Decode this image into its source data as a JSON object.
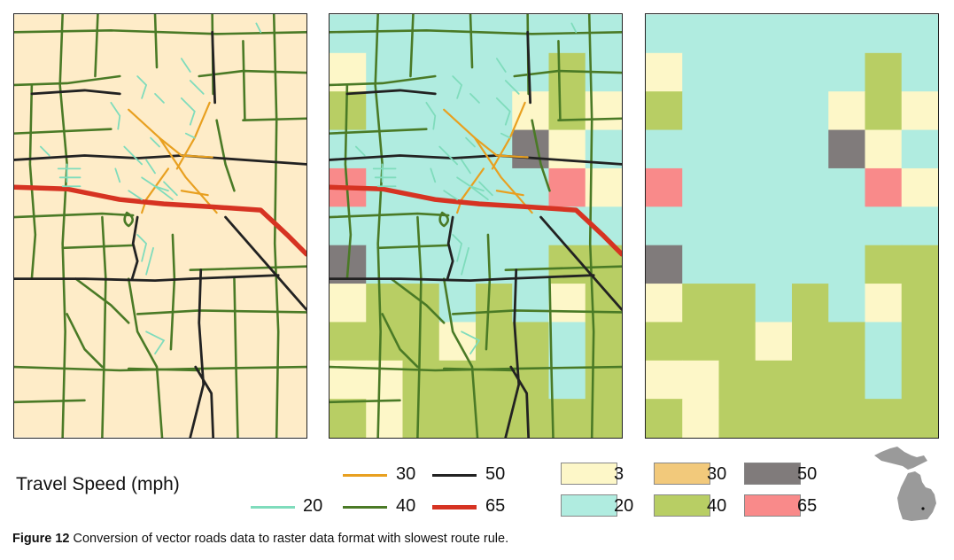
{
  "legend": {
    "title": "Travel Speed (mph)",
    "vector": [
      {
        "label": "30",
        "color": "#e8a020"
      },
      {
        "label": "50",
        "color": "#222222"
      },
      {
        "label": "20",
        "color": "#7fdcbc"
      },
      {
        "label": "40",
        "color": "#4a7a26"
      },
      {
        "label": "65",
        "color": "#d63322"
      }
    ],
    "raster": [
      {
        "label": "3",
        "color": "#fdf7c8"
      },
      {
        "label": "30",
        "color": "#f2c97b"
      },
      {
        "label": "50",
        "color": "#807b7b"
      },
      {
        "label": "20",
        "color": "#b0ece0"
      },
      {
        "label": "40",
        "color": "#b8ce64"
      },
      {
        "label": "65",
        "color": "#f98a8a"
      }
    ]
  },
  "caption": {
    "label": "Figure 12",
    "text": " Conversion of vector roads data to raster data format with slowest route rule."
  }
}
